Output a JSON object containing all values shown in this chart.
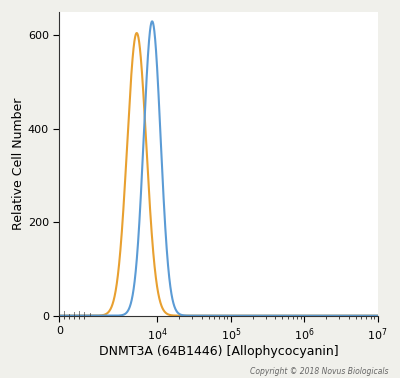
{
  "title": "",
  "xlabel": "DNMT3A (64B1446) [Allophycocyanin]",
  "ylabel": "Relative Cell Number",
  "copyright": "Copyright © 2018 Novus Biologicals",
  "orange_color": "#E8A030",
  "blue_color": "#5B9BD5",
  "orange_peak_log": 3.72,
  "orange_peak_y": 605,
  "blue_peak_log": 3.93,
  "blue_peak_y": 630,
  "orange_sigma": 0.13,
  "blue_sigma": 0.115,
  "linthresh": 1000,
  "xlim_min": 0,
  "xlim_max": 10000000.0,
  "ylim_min": 0,
  "ylim_max": 650,
  "background_color": "#f0f0eb",
  "plot_bg_color": "#ffffff",
  "yticks": [
    0,
    200,
    400,
    600
  ],
  "figsize": [
    4.0,
    3.78
  ],
  "dpi": 100
}
